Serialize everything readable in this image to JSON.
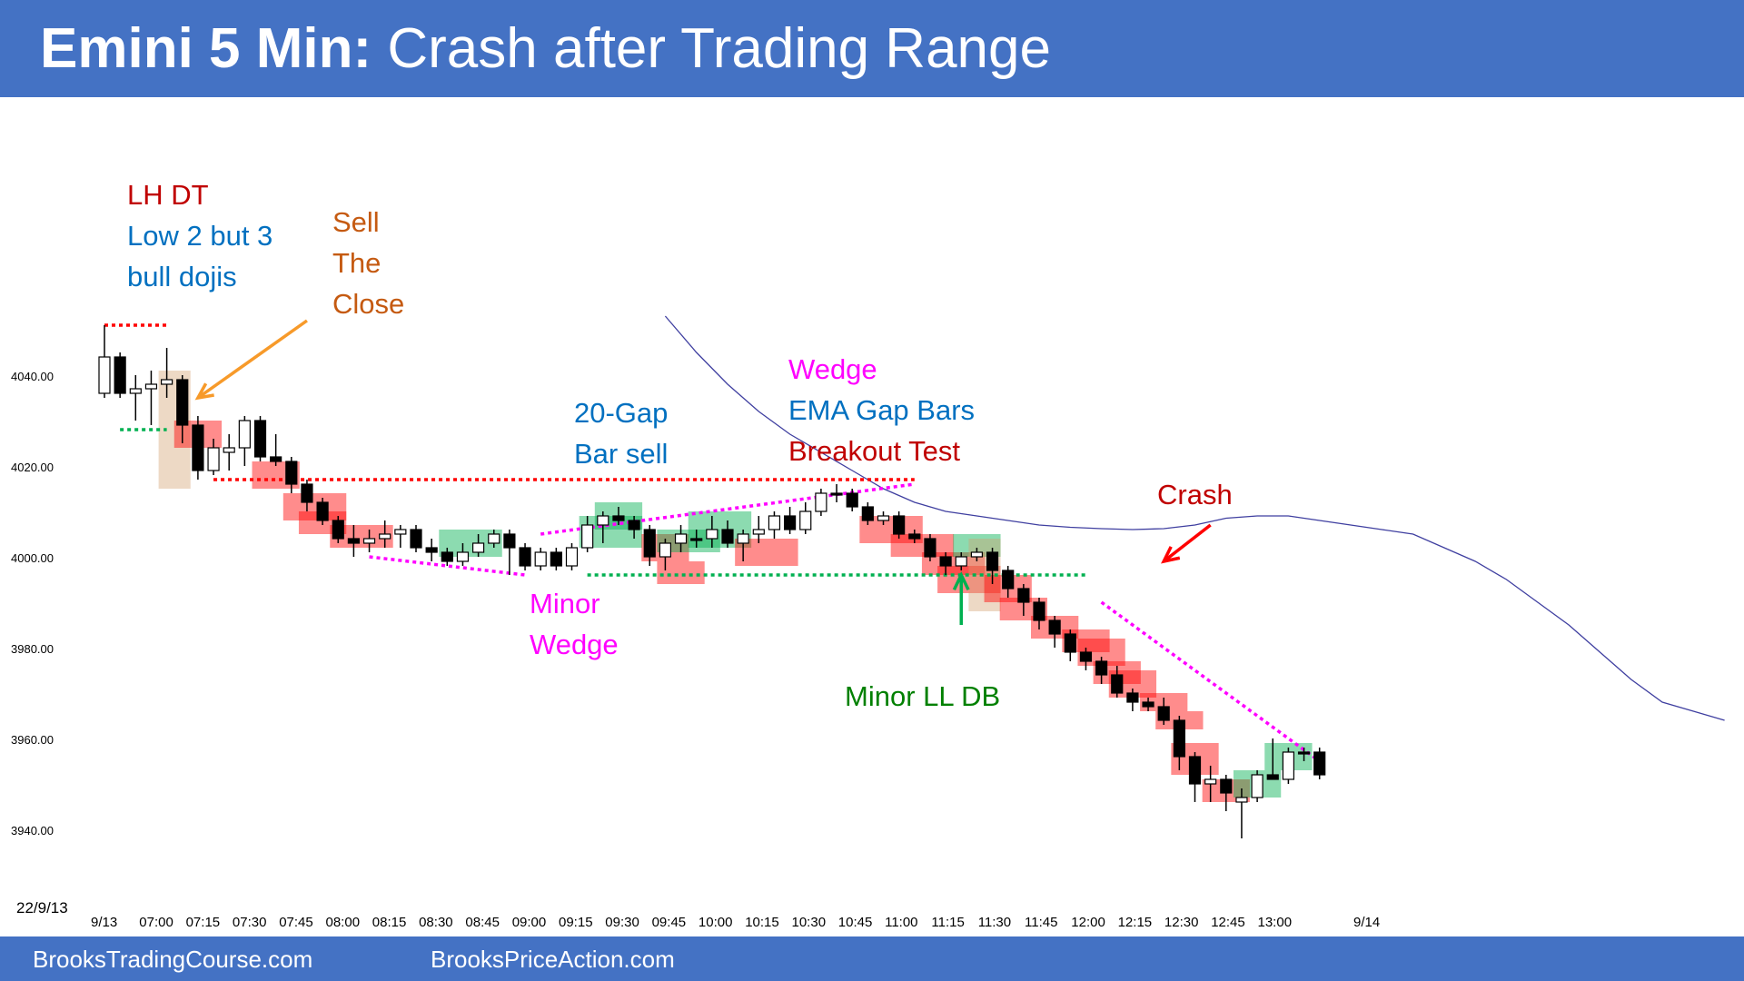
{
  "header": {
    "title_bold": "Emini 5 Min:",
    "title_rest": "Crash after Trading Range"
  },
  "footer": {
    "site_1": "BrooksTradingCourse.com",
    "site_2": "BrooksPriceAction.com"
  },
  "colors": {
    "brand_blue": "#4472C4",
    "bear_red": "#FF0000",
    "bull_green": "#00B050",
    "ema": "#3F3FA0",
    "magenta": "#FF00FF",
    "dark_red": "#C00000",
    "blue_text": "#0070C0",
    "orange_text": "#C55A11",
    "arrow_orange": "#F79A2A"
  },
  "chart_data": {
    "type": "candlestick",
    "date_label": "22/9/13",
    "ylim": [
      3930,
      4058
    ],
    "yticks": [
      "4040.00",
      "4020.00",
      "4000.00",
      "3980.00",
      "3960.00",
      "3940.00"
    ],
    "xticks": [
      "9/13",
      "07:00",
      "07:15",
      "07:30",
      "07:45",
      "08:00",
      "08:15",
      "08:30",
      "08:45",
      "09:00",
      "09:15",
      "09:30",
      "09:45",
      "10:00",
      "10:15",
      "10:30",
      "10:45",
      "11:00",
      "11:15",
      "11:30",
      "11:45",
      "12:00",
      "12:15",
      "12:30",
      "12:45",
      "13:00",
      "9/14"
    ],
    "bars": [
      {
        "o": 4036,
        "h": 4051,
        "l": 4035,
        "c": 4044
      },
      {
        "o": 4044,
        "h": 4045,
        "l": 4035,
        "c": 4036
      },
      {
        "o": 4036,
        "h": 4040,
        "l": 4030,
        "c": 4037
      },
      {
        "o": 4037,
        "h": 4041,
        "l": 4029,
        "c": 4038
      },
      {
        "o": 4038,
        "h": 4046,
        "l": 4035,
        "c": 4039
      },
      {
        "o": 4039,
        "h": 4040,
        "l": 4025,
        "c": 4029
      },
      {
        "o": 4029,
        "h": 4031,
        "l": 4017,
        "c": 4019
      },
      {
        "o": 4019,
        "h": 4026,
        "l": 4018,
        "c": 4024
      },
      {
        "o": 4023,
        "h": 4027,
        "l": 4019,
        "c": 4024
      },
      {
        "o": 4024,
        "h": 4031,
        "l": 4020,
        "c": 4030
      },
      {
        "o": 4030,
        "h": 4031,
        "l": 4021,
        "c": 4022
      },
      {
        "o": 4022,
        "h": 4027,
        "l": 4020,
        "c": 4021
      },
      {
        "o": 4021,
        "h": 4022,
        "l": 4014,
        "c": 4016
      },
      {
        "o": 4016,
        "h": 4017,
        "l": 4010,
        "c": 4012
      },
      {
        "o": 4012,
        "h": 4013,
        "l": 4007,
        "c": 4008
      },
      {
        "o": 4008,
        "h": 4009,
        "l": 4003,
        "c": 4004
      },
      {
        "o": 4004,
        "h": 4007,
        "l": 4000,
        "c": 4003
      },
      {
        "o": 4003,
        "h": 4006,
        "l": 4001,
        "c": 4004
      },
      {
        "o": 4004,
        "h": 4008,
        "l": 4002,
        "c": 4005
      },
      {
        "o": 4005,
        "h": 4007,
        "l": 4002,
        "c": 4006
      },
      {
        "o": 4006,
        "h": 4007,
        "l": 4001,
        "c": 4002
      },
      {
        "o": 4002,
        "h": 4004,
        "l": 3999,
        "c": 4001
      },
      {
        "o": 4001,
        "h": 4002,
        "l": 3998,
        "c": 3999
      },
      {
        "o": 3999,
        "h": 4003,
        "l": 3998,
        "c": 4001
      },
      {
        "o": 4001,
        "h": 4005,
        "l": 4000,
        "c": 4003
      },
      {
        "o": 4003,
        "h": 4006,
        "l": 4002,
        "c": 4005
      },
      {
        "o": 4005,
        "h": 4006,
        "l": 3996,
        "c": 4002
      },
      {
        "o": 4002,
        "h": 4003,
        "l": 3997,
        "c": 3998
      },
      {
        "o": 3998,
        "h": 4002,
        "l": 3997,
        "c": 4001
      },
      {
        "o": 4001,
        "h": 4002,
        "l": 3997,
        "c": 3998
      },
      {
        "o": 3998,
        "h": 4003,
        "l": 3997,
        "c": 4002
      },
      {
        "o": 4002,
        "h": 4009,
        "l": 4001,
        "c": 4007
      },
      {
        "o": 4007,
        "h": 4010,
        "l": 4003,
        "c": 4009
      },
      {
        "o": 4009,
        "h": 4011,
        "l": 4007,
        "c": 4008
      },
      {
        "o": 4008,
        "h": 4009,
        "l": 4004,
        "c": 4006
      },
      {
        "o": 4006,
        "h": 4007,
        "l": 3998,
        "c": 4000
      },
      {
        "o": 4000,
        "h": 4004,
        "l": 3997,
        "c": 4003
      },
      {
        "o": 4003,
        "h": 4007,
        "l": 4001,
        "c": 4005
      },
      {
        "o": 4004,
        "h": 4006,
        "l": 4002,
        "c": 4004
      },
      {
        "o": 4004,
        "h": 4009,
        "l": 4002,
        "c": 4006
      },
      {
        "o": 4006,
        "h": 4008,
        "l": 4002,
        "c": 4003
      },
      {
        "o": 4003,
        "h": 4006,
        "l": 3999,
        "c": 4005
      },
      {
        "o": 4005,
        "h": 4009,
        "l": 4003,
        "c": 4006
      },
      {
        "o": 4006,
        "h": 4010,
        "l": 4004,
        "c": 4009
      },
      {
        "o": 4009,
        "h": 4011,
        "l": 4005,
        "c": 4006
      },
      {
        "o": 4006,
        "h": 4012,
        "l": 4005,
        "c": 4010
      },
      {
        "o": 4010,
        "h": 4015,
        "l": 4009,
        "c": 4014
      },
      {
        "o": 4014,
        "h": 4016,
        "l": 4012,
        "c": 4014
      },
      {
        "o": 4014,
        "h": 4015,
        "l": 4010,
        "c": 4011
      },
      {
        "o": 4011,
        "h": 4012,
        "l": 4007,
        "c": 4008
      },
      {
        "o": 4008,
        "h": 4010,
        "l": 4007,
        "c": 4009
      },
      {
        "o": 4009,
        "h": 4010,
        "l": 4004,
        "c": 4005
      },
      {
        "o": 4005,
        "h": 4006,
        "l": 4003,
        "c": 4004
      },
      {
        "o": 4004,
        "h": 4005,
        "l": 3999,
        "c": 4000
      },
      {
        "o": 4000,
        "h": 4001,
        "l": 3996,
        "c": 3998
      },
      {
        "o": 3998,
        "h": 4001,
        "l": 3997,
        "c": 4000
      },
      {
        "o": 4000,
        "h": 4002,
        "l": 3999,
        "c": 4001
      },
      {
        "o": 4001,
        "h": 4002,
        "l": 3994,
        "c": 3997
      },
      {
        "o": 3997,
        "h": 3998,
        "l": 3991,
        "c": 3993
      },
      {
        "o": 3993,
        "h": 3994,
        "l": 3987,
        "c": 3990
      },
      {
        "o": 3990,
        "h": 3991,
        "l": 3984,
        "c": 3986
      },
      {
        "o": 3986,
        "h": 3987,
        "l": 3980,
        "c": 3983
      },
      {
        "o": 3983,
        "h": 3984,
        "l": 3977,
        "c": 3979
      },
      {
        "o": 3979,
        "h": 3980,
        "l": 3975,
        "c": 3977
      },
      {
        "o": 3977,
        "h": 3978,
        "l": 3972,
        "c": 3974
      },
      {
        "o": 3974,
        "h": 3976,
        "l": 3969,
        "c": 3970
      },
      {
        "o": 3970,
        "h": 3971,
        "l": 3966,
        "c": 3968
      },
      {
        "o": 3968,
        "h": 3969,
        "l": 3966,
        "c": 3967
      },
      {
        "o": 3967,
        "h": 3969,
        "l": 3963,
        "c": 3964
      },
      {
        "o": 3964,
        "h": 3965,
        "l": 3953,
        "c": 3956
      },
      {
        "o": 3956,
        "h": 3957,
        "l": 3946,
        "c": 3950
      },
      {
        "o": 3950,
        "h": 3954,
        "l": 3946,
        "c": 3951
      },
      {
        "o": 3951,
        "h": 3952,
        "l": 3944,
        "c": 3948
      },
      {
        "o": 3946,
        "h": 3949,
        "l": 3938,
        "c": 3947
      },
      {
        "o": 3947,
        "h": 3953,
        "l": 3946,
        "c": 3952
      },
      {
        "o": 3952,
        "h": 3960,
        "l": 3951,
        "c": 3951
      },
      {
        "o": 3951,
        "h": 3958,
        "l": 3950,
        "c": 3957
      },
      {
        "o": 3957,
        "h": 3958,
        "l": 3955,
        "c": 3957
      },
      {
        "o": 3957,
        "h": 3958,
        "l": 3951,
        "c": 3952
      }
    ],
    "ema": [
      [
        36,
        4053
      ],
      [
        38,
        4045
      ],
      [
        40,
        4038
      ],
      [
        42,
        4032
      ],
      [
        44,
        4027
      ],
      [
        46,
        4023
      ],
      [
        48,
        4019
      ],
      [
        50,
        4015
      ],
      [
        52,
        4012
      ],
      [
        54,
        4010
      ],
      [
        56,
        4009
      ],
      [
        58,
        4008
      ],
      [
        60,
        4007
      ],
      [
        62,
        4006.5
      ],
      [
        64,
        4006.2
      ],
      [
        66,
        4006
      ],
      [
        68,
        4006.2
      ],
      [
        70,
        4007
      ],
      [
        72,
        4008.5
      ],
      [
        74,
        4009
      ],
      [
        76,
        4009
      ],
      [
        78,
        4008
      ],
      [
        80,
        4007
      ],
      [
        82,
        4006
      ],
      [
        84,
        4005
      ],
      [
        86,
        4002
      ],
      [
        88,
        3999
      ],
      [
        90,
        3995
      ],
      [
        92,
        3990
      ],
      [
        94,
        3985
      ],
      [
        96,
        3979
      ],
      [
        98,
        3973
      ],
      [
        100,
        3968
      ],
      [
        102,
        3966
      ],
      [
        104,
        3964
      ]
    ],
    "lines": [
      {
        "type": "dotted",
        "color": "#FF0000",
        "points": [
          [
            0,
            4051
          ],
          [
            4,
            4051
          ]
        ]
      },
      {
        "type": "dotted",
        "color": "#00B050",
        "points": [
          [
            1,
            4028
          ],
          [
            4,
            4028
          ]
        ]
      },
      {
        "type": "dotted",
        "color": "#FF0000",
        "points": [
          [
            7,
            4017
          ],
          [
            52,
            4017
          ]
        ]
      },
      {
        "type": "dotted",
        "color": "#00B050",
        "points": [
          [
            31,
            3996
          ],
          [
            63,
            3996
          ]
        ]
      },
      {
        "type": "dotted",
        "color": "#FF00FF",
        "points": [
          [
            17,
            4000
          ],
          [
            27,
            3996
          ]
        ]
      },
      {
        "type": "dotted",
        "color": "#FF00FF",
        "points": [
          [
            28,
            4005
          ],
          [
            52,
            4016
          ]
        ]
      },
      {
        "type": "dotted",
        "color": "#FF00FF",
        "points": [
          [
            64,
            3990
          ],
          [
            78,
            3955
          ]
        ]
      }
    ],
    "annotations": [
      {
        "lines": [
          "LH DT"
        ],
        "color": "#C00000"
      },
      {
        "lines": [
          "Low 2 but 3",
          "bull dojis"
        ],
        "color": "#0070C0"
      },
      {
        "lines": [
          "Sell",
          "The",
          "Close"
        ],
        "color": "#C55A11"
      },
      {
        "lines": [
          "20-Gap",
          "Bar sell"
        ],
        "color": "#0070C0"
      },
      {
        "lines": [
          "Wedge"
        ],
        "color": "#FF00FF"
      },
      {
        "lines": [
          "EMA Gap Bars"
        ],
        "color": "#0070C0"
      },
      {
        "lines": [
          "Breakout Test"
        ],
        "color": "#C00000"
      },
      {
        "lines": [
          "Crash"
        ],
        "color": "#C00000"
      },
      {
        "lines": [
          "Minor",
          "Wedge"
        ],
        "color": "#FF00FF"
      },
      {
        "lines": [
          "Minor LL DB"
        ],
        "color": "#008000"
      }
    ],
    "highlights": [
      {
        "from": 4,
        "to": 5,
        "lo": 4015,
        "hi": 4041,
        "color": "tan"
      },
      {
        "from": 5,
        "to": 7,
        "lo": 4024,
        "hi": 4030,
        "color": "red"
      },
      {
        "from": 10,
        "to": 12,
        "lo": 4015,
        "hi": 4021,
        "color": "red"
      },
      {
        "from": 12,
        "to": 15,
        "lo": 4008,
        "hi": 4014,
        "color": "red"
      },
      {
        "from": 13,
        "to": 15,
        "lo": 4005,
        "hi": 4010,
        "color": "red"
      },
      {
        "from": 15,
        "to": 18,
        "lo": 4002,
        "hi": 4007,
        "color": "red"
      },
      {
        "from": 22,
        "to": 25,
        "lo": 4000,
        "hi": 4006,
        "color": "green"
      },
      {
        "from": 31,
        "to": 34,
        "lo": 4002,
        "hi": 4009,
        "color": "green"
      },
      {
        "from": 32,
        "to": 34,
        "lo": 4006,
        "hi": 4012,
        "color": "green"
      },
      {
        "from": 35,
        "to": 37,
        "lo": 3999,
        "hi": 4005,
        "color": "red"
      },
      {
        "from": 36,
        "to": 38,
        "lo": 3994,
        "hi": 3999,
        "color": "red"
      },
      {
        "from": 36,
        "to": 39,
        "lo": 4001,
        "hi": 4006,
        "color": "green"
      },
      {
        "from": 38,
        "to": 41,
        "lo": 4002,
        "hi": 4010,
        "color": "green"
      },
      {
        "from": 41,
        "to": 44,
        "lo": 3998,
        "hi": 4004,
        "color": "red"
      },
      {
        "from": 49,
        "to": 52,
        "lo": 4003,
        "hi": 4009,
        "color": "red"
      },
      {
        "from": 51,
        "to": 54,
        "lo": 4000,
        "hi": 4005,
        "color": "red"
      },
      {
        "from": 53,
        "to": 56,
        "lo": 3996,
        "hi": 4001,
        "color": "red"
      },
      {
        "from": 54,
        "to": 57,
        "lo": 3992,
        "hi": 3998,
        "color": "red"
      },
      {
        "from": 55,
        "to": 57,
        "lo": 4000,
        "hi": 4005,
        "color": "green"
      },
      {
        "from": 56,
        "to": 57,
        "lo": 3988,
        "hi": 4004,
        "color": "tan"
      },
      {
        "from": 57,
        "to": 59,
        "lo": 3990,
        "hi": 3996,
        "color": "red"
      },
      {
        "from": 58,
        "to": 60,
        "lo": 3986,
        "hi": 3991,
        "color": "red"
      },
      {
        "from": 60,
        "to": 62,
        "lo": 3982,
        "hi": 3987,
        "color": "red"
      },
      {
        "from": 62,
        "to": 64,
        "lo": 3979,
        "hi": 3984,
        "color": "red"
      },
      {
        "from": 63,
        "to": 65,
        "lo": 3976,
        "hi": 3982,
        "color": "red"
      },
      {
        "from": 64,
        "to": 66,
        "lo": 3972,
        "hi": 3977,
        "color": "red"
      },
      {
        "from": 65,
        "to": 67,
        "lo": 3969,
        "hi": 3975,
        "color": "red"
      },
      {
        "from": 67,
        "to": 69,
        "lo": 3966,
        "hi": 3970,
        "color": "red"
      },
      {
        "from": 68,
        "to": 70,
        "lo": 3962,
        "hi": 3966,
        "color": "red"
      },
      {
        "from": 69,
        "to": 71,
        "lo": 3952,
        "hi": 3959,
        "color": "red"
      },
      {
        "from": 71,
        "to": 73,
        "lo": 3946,
        "hi": 3951,
        "color": "red"
      },
      {
        "from": 73,
        "to": 75,
        "lo": 3947,
        "hi": 3953,
        "color": "green"
      },
      {
        "from": 75,
        "to": 77,
        "lo": 3953,
        "hi": 3959,
        "color": "green"
      }
    ],
    "arrows": [
      {
        "color": "#F79A2A",
        "from": [
          13,
          4052
        ],
        "to": [
          6,
          4035
        ]
      },
      {
        "color": "#FF0000",
        "from": [
          71,
          4007
        ],
        "to": [
          68,
          3999
        ]
      },
      {
        "color": "#00B050",
        "from": [
          55,
          3985
        ],
        "to": [
          55,
          3996
        ]
      }
    ]
  }
}
